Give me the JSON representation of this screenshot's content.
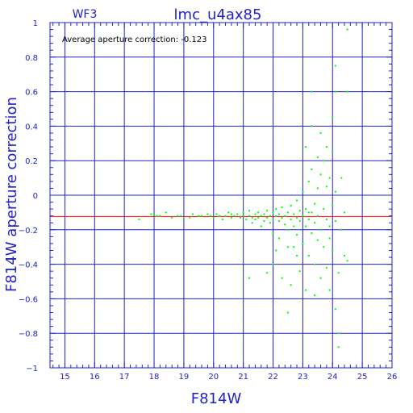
{
  "chart_data": {
    "type": "scatter",
    "title": "lmc_u4ax85",
    "subtitle": "WF3",
    "annotation": "Average aperture correction: -0.123",
    "xlabel": "F814W",
    "ylabel": "F814W aperture correction",
    "xlim": [
      14.5,
      26
    ],
    "ylim": [
      -1,
      1
    ],
    "x_ticks": [
      15,
      16,
      17,
      18,
      19,
      20,
      21,
      22,
      23,
      24,
      25,
      26
    ],
    "y_ticks": [
      -1,
      -0.8,
      -0.6,
      -0.4,
      -0.2,
      0,
      0.2,
      0.4,
      0.6,
      0.8,
      1
    ],
    "x_tick_labels": [
      "15",
      "16",
      "17",
      "18",
      "19",
      "20",
      "21",
      "22",
      "23",
      "24",
      "25",
      "26"
    ],
    "y_tick_labels": [
      "−1",
      "−0.8",
      "−0.6",
      "−0.4",
      "−0.2",
      "0",
      "0.2",
      "0.4",
      "0.6",
      "0.8",
      "1"
    ],
    "grid": true,
    "reference_line": {
      "y": -0.123,
      "color": "#ff0000"
    },
    "colors": {
      "axes": "#2222cc",
      "points": "#00ff00",
      "reference": "#ff0000",
      "annotation": "#000000"
    },
    "series": [
      {
        "color": "#00ff00",
        "points": [
          [
            17.5,
            -0.14
          ],
          [
            17.9,
            -0.11
          ],
          [
            18.0,
            -0.11
          ],
          [
            18.1,
            -0.12
          ],
          [
            18.2,
            -0.12
          ],
          [
            18.4,
            -0.1
          ],
          [
            18.6,
            -0.13
          ],
          [
            18.8,
            -0.12
          ],
          [
            18.9,
            -0.12
          ],
          [
            19.0,
            -0.14
          ],
          [
            19.2,
            -0.13
          ],
          [
            19.3,
            -0.11
          ],
          [
            19.5,
            -0.12
          ],
          [
            19.6,
            -0.12
          ],
          [
            19.8,
            -0.11
          ],
          [
            19.9,
            -0.12
          ],
          [
            20.0,
            -0.13
          ],
          [
            20.1,
            -0.11
          ],
          [
            20.2,
            -0.12
          ],
          [
            20.3,
            -0.14
          ],
          [
            20.4,
            -0.12
          ],
          [
            20.5,
            -0.1
          ],
          [
            20.6,
            -0.13
          ],
          [
            20.6,
            -0.11
          ],
          [
            20.7,
            -0.12
          ],
          [
            20.8,
            -0.11
          ],
          [
            20.9,
            -0.13
          ],
          [
            21.0,
            -0.12
          ],
          [
            21.0,
            -0.1
          ],
          [
            21.1,
            -0.14
          ],
          [
            21.2,
            -0.12
          ],
          [
            21.2,
            -0.09
          ],
          [
            21.3,
            -0.13
          ],
          [
            21.3,
            -0.16
          ],
          [
            21.4,
            -0.11
          ],
          [
            21.4,
            -0.14
          ],
          [
            21.5,
            -0.1
          ],
          [
            21.5,
            -0.13
          ],
          [
            21.6,
            -0.12
          ],
          [
            21.6,
            -0.18
          ],
          [
            21.7,
            -0.11
          ],
          [
            21.7,
            -0.15
          ],
          [
            21.8,
            -0.09
          ],
          [
            21.8,
            -0.13
          ],
          [
            21.9,
            -0.12
          ],
          [
            21.9,
            -0.16
          ],
          [
            22.0,
            -0.1
          ],
          [
            22.0,
            -0.14
          ],
          [
            22.0,
            -0.22
          ],
          [
            22.1,
            -0.12
          ],
          [
            22.1,
            -0.08
          ],
          [
            22.2,
            -0.15
          ],
          [
            22.2,
            -0.11
          ],
          [
            22.2,
            -0.25
          ],
          [
            22.3,
            -0.13
          ],
          [
            22.3,
            -0.07
          ],
          [
            22.4,
            -0.17
          ],
          [
            22.4,
            -0.12
          ],
          [
            22.5,
            -0.1
          ],
          [
            22.5,
            -0.2
          ],
          [
            22.5,
            -0.3
          ],
          [
            22.6,
            -0.14
          ],
          [
            22.6,
            -0.06
          ],
          [
            22.7,
            -0.18
          ],
          [
            22.7,
            -0.11
          ],
          [
            22.8,
            -0.13
          ],
          [
            22.8,
            -0.23
          ],
          [
            22.8,
            -0.03
          ],
          [
            22.9,
            -0.15
          ],
          [
            22.9,
            -0.09
          ],
          [
            23.0,
            -0.12
          ],
          [
            23.0,
            -0.28
          ],
          [
            23.0,
            0.02
          ],
          [
            23.1,
            -0.18
          ],
          [
            23.1,
            -0.08
          ],
          [
            23.2,
            -0.14
          ],
          [
            23.2,
            -0.35
          ],
          [
            23.2,
            0.08
          ],
          [
            23.3,
            -0.1
          ],
          [
            23.3,
            -0.22
          ],
          [
            23.3,
            0.15
          ],
          [
            23.4,
            -0.16
          ],
          [
            23.4,
            -0.05
          ],
          [
            23.4,
            -0.4
          ],
          [
            23.5,
            -0.12
          ],
          [
            23.5,
            0.04
          ],
          [
            23.5,
            -0.26
          ],
          [
            23.6,
            -0.2
          ],
          [
            23.6,
            0.12
          ],
          [
            23.6,
            -0.48
          ],
          [
            23.7,
            -0.08
          ],
          [
            23.7,
            -0.3
          ],
          [
            23.7,
            0.2
          ],
          [
            23.8,
            -0.14
          ],
          [
            23.8,
            0.05
          ],
          [
            23.8,
            -0.42
          ],
          [
            23.9,
            -0.18
          ],
          [
            23.9,
            0.1
          ],
          [
            23.9,
            -0.55
          ],
          [
            24.0,
            -0.06
          ],
          [
            24.0,
            -0.32
          ],
          [
            24.0,
            0.25
          ],
          [
            24.1,
            -0.15
          ],
          [
            24.1,
            0.02
          ],
          [
            24.1,
            -0.66
          ],
          [
            24.0,
            0.45
          ],
          [
            24.1,
            0.6
          ],
          [
            24.1,
            0.75
          ],
          [
            23.3,
            0.4
          ],
          [
            23.3,
            0.6
          ],
          [
            23.6,
            0.36
          ],
          [
            24.2,
            -0.8
          ],
          [
            24.2,
            -0.88
          ],
          [
            24.2,
            -0.45
          ],
          [
            24.3,
            -0.2
          ],
          [
            24.3,
            0.1
          ],
          [
            24.4,
            -0.1
          ],
          [
            24.4,
            -0.35
          ],
          [
            24.5,
            0.96
          ],
          [
            24.5,
            0.6
          ],
          [
            24.5,
            -0.38
          ],
          [
            22.0,
            -0.4
          ],
          [
            22.1,
            -0.32
          ],
          [
            22.3,
            -0.48
          ],
          [
            22.6,
            -0.52
          ],
          [
            22.9,
            -0.44
          ],
          [
            23.1,
            -0.55
          ],
          [
            23.4,
            -0.58
          ],
          [
            22.8,
            -0.35
          ],
          [
            21.8,
            -0.45
          ],
          [
            21.2,
            -0.48
          ],
          [
            22.5,
            -0.68
          ],
          [
            23.2,
            -0.1
          ],
          [
            23.1,
            0.28
          ],
          [
            23.5,
            0.22
          ],
          [
            23.8,
            0.28
          ],
          [
            23.9,
            -0.25
          ],
          [
            22.7,
            -0.3
          ]
        ]
      }
    ]
  }
}
